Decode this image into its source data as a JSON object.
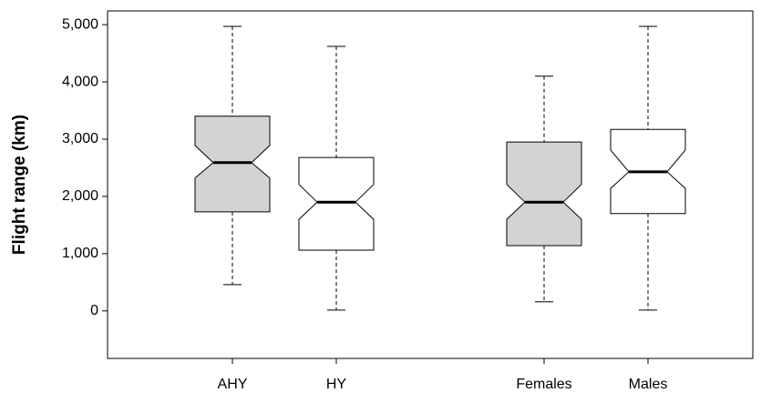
{
  "chart_data": {
    "type": "box",
    "ylabel": "Flight range (km)",
    "categories": [
      "AHY",
      "HY",
      null,
      "Females",
      "Males"
    ],
    "whisker_high": [
      4970,
      4620,
      null,
      4100,
      4970
    ],
    "q3": [
      3400,
      2680,
      null,
      2950,
      3170
    ],
    "notch_high": [
      2890,
      2210,
      null,
      2210,
      2810
    ],
    "median": [
      2590,
      1900,
      null,
      1900,
      2430
    ],
    "notch_low": [
      2320,
      1600,
      null,
      1600,
      2140
    ],
    "q1": [
      1730,
      1060,
      null,
      1140,
      1700
    ],
    "whisker_low": [
      460,
      15,
      null,
      160,
      15
    ],
    "colors": [
      "#d3d3d3",
      "#ffffff",
      null,
      "#d3d3d3",
      "#ffffff"
    ],
    "ylim": [
      -830,
      5240
    ],
    "yticks": [
      0,
      {
        "value": 1000,
        "label": "1,000"
      },
      {
        "value": 2000,
        "label": "2,000"
      },
      {
        "value": 3000,
        "label": "3,000"
      },
      {
        "value": 4000,
        "label": "4,000"
      },
      {
        "value": 5000,
        "label": "5,000"
      }
    ]
  }
}
